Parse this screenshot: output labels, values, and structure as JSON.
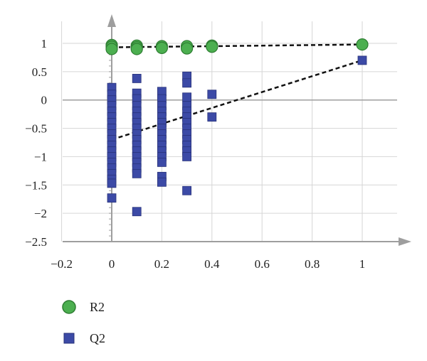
{
  "chart_data": {
    "type": "scatter",
    "xlim": [
      -0.2,
      1.1
    ],
    "ylim": [
      -2.5,
      1.5
    ],
    "x_ticks": [
      -0.2,
      0,
      0.2,
      0.4,
      0.6,
      0.8,
      1
    ],
    "x_tick_labels": [
      "−0.2",
      "0",
      "0.2",
      "0.4",
      "0.6",
      "0.8",
      "1"
    ],
    "y_ticks": [
      1,
      0.5,
      0,
      -0.5,
      -1,
      -1.5,
      -2,
      -2.5
    ],
    "y_tick_labels": [
      "1",
      "0.5",
      "0",
      "−0.5",
      "−1",
      "−1.5",
      "−2",
      "−2.5"
    ],
    "grid": true,
    "legend": "bottom-left",
    "series": [
      {
        "name": "R2",
        "marker": "circle",
        "color": "#4caf50",
        "points": [
          [
            0,
            0.97
          ],
          [
            0,
            0.94
          ],
          [
            0,
            0.9
          ],
          [
            0.1,
            0.96
          ],
          [
            0.1,
            0.93
          ],
          [
            0.1,
            0.9
          ],
          [
            0.2,
            0.95
          ],
          [
            0.2,
            0.92
          ],
          [
            0.3,
            0.95
          ],
          [
            0.3,
            0.91
          ],
          [
            0.4,
            0.96
          ],
          [
            0.4,
            0.94
          ],
          [
            1,
            0.98
          ]
        ],
        "trend": [
          [
            0,
            0.93
          ],
          [
            1,
            0.98
          ]
        ]
      },
      {
        "name": "Q2",
        "marker": "square",
        "color": "#3c4aa6",
        "points": [
          [
            0,
            0.22
          ],
          [
            0,
            0.1
          ],
          [
            0,
            0.0
          ],
          [
            0,
            -0.1
          ],
          [
            0,
            -0.2
          ],
          [
            0,
            -0.3
          ],
          [
            0,
            -0.4
          ],
          [
            0,
            -0.5
          ],
          [
            0,
            -0.6
          ],
          [
            0,
            -0.7
          ],
          [
            0,
            -0.8
          ],
          [
            0,
            -0.9
          ],
          [
            0,
            -1.0
          ],
          [
            0,
            -1.1
          ],
          [
            0,
            -1.2
          ],
          [
            0,
            -1.3
          ],
          [
            0,
            -1.4
          ],
          [
            0,
            -1.47
          ],
          [
            0,
            -1.73
          ],
          [
            0.1,
            0.38
          ],
          [
            0.1,
            0.12
          ],
          [
            0.1,
            0.02
          ],
          [
            0.1,
            -0.1
          ],
          [
            0.1,
            -0.2
          ],
          [
            0.1,
            -0.3
          ],
          [
            0.1,
            -0.4
          ],
          [
            0.1,
            -0.5
          ],
          [
            0.1,
            -0.6
          ],
          [
            0.1,
            -0.7
          ],
          [
            0.1,
            -0.8
          ],
          [
            0.1,
            -0.9
          ],
          [
            0.1,
            -1.0
          ],
          [
            0.1,
            -1.1
          ],
          [
            0.1,
            -1.2
          ],
          [
            0.1,
            -1.3
          ],
          [
            0.1,
            -1.97
          ],
          [
            0.2,
            0.15
          ],
          [
            0.2,
            0.02
          ],
          [
            0.2,
            -0.1
          ],
          [
            0.2,
            -0.2
          ],
          [
            0.2,
            -0.3
          ],
          [
            0.2,
            -0.4
          ],
          [
            0.2,
            -0.5
          ],
          [
            0.2,
            -0.6
          ],
          [
            0.2,
            -0.7
          ],
          [
            0.2,
            -0.8
          ],
          [
            0.2,
            -0.9
          ],
          [
            0.2,
            -1.0
          ],
          [
            0.2,
            -1.1
          ],
          [
            0.2,
            -1.35
          ],
          [
            0.2,
            -1.45
          ],
          [
            0.3,
            0.42
          ],
          [
            0.3,
            0.3
          ],
          [
            0.3,
            0.05
          ],
          [
            0.3,
            -0.1
          ],
          [
            0.3,
            -0.2
          ],
          [
            0.3,
            -0.3
          ],
          [
            0.3,
            -0.4
          ],
          [
            0.3,
            -0.5
          ],
          [
            0.3,
            -0.6
          ],
          [
            0.3,
            -0.7
          ],
          [
            0.3,
            -0.8
          ],
          [
            0.3,
            -0.9
          ],
          [
            0.3,
            -1.0
          ],
          [
            0.3,
            -1.6
          ],
          [
            0.4,
            0.1
          ],
          [
            0.4,
            -0.3
          ],
          [
            1,
            0.7
          ]
        ],
        "trend": [
          [
            0,
            -0.7
          ],
          [
            1,
            0.7
          ]
        ]
      }
    ]
  },
  "legend": {
    "items": [
      {
        "label": "R2",
        "marker": "circle",
        "color": "#4caf50"
      },
      {
        "label": "Q2",
        "marker": "square",
        "color": "#3c4aa6"
      }
    ]
  },
  "colors": {
    "axis": "#9e9e9e",
    "grid": "#d6d6d6",
    "trend": "#111111"
  }
}
